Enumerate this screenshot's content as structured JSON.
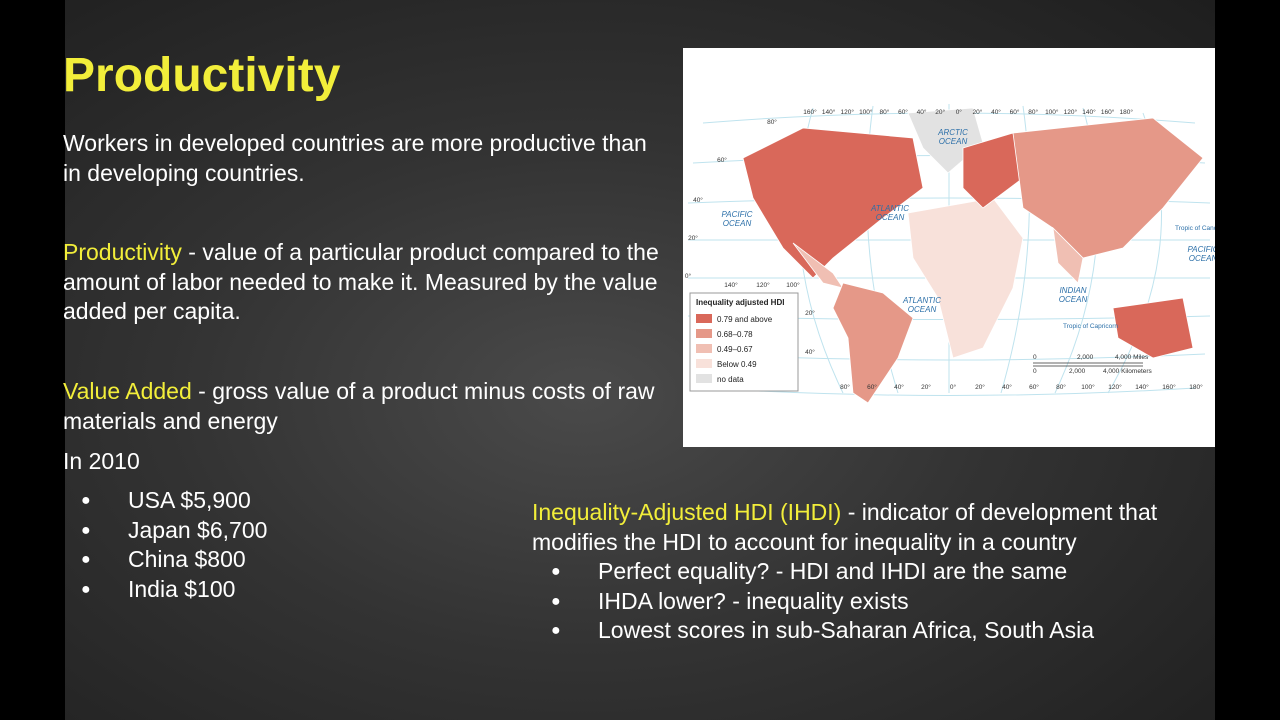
{
  "slide": {
    "title": "Productivity",
    "intro": "Workers in developed countries are more productive than in developing countries.",
    "definitions": [
      {
        "term": "Productivity",
        "text": " - value of a particular product compared to the amount of labor needed to make it.  Measured by the value added per capita."
      },
      {
        "term": "Value Added",
        "text": " - gross value of a product minus costs of raw materials and energy"
      }
    ],
    "year_heading": "In 2010",
    "bullets": [
      "USA $5,900",
      "Japan $6,700",
      "China $800",
      "India $100"
    ],
    "ihdi": {
      "term": "Inequality-Adjusted HDI (IHDI)",
      "text": " - indicator of development that modifies the HDI to account for inequality in a country",
      "bullets": [
        "Perfect equality? - HDI and IHDI are the same",
        "IHDA lower? - inequality exists",
        "Lowest scores in sub-Saharan Africa, South Asia"
      ]
    }
  },
  "map": {
    "legend": {
      "title": "Inequality adjusted HDI",
      "items": [
        {
          "label": "0.79 and above",
          "color": "#d9685a"
        },
        {
          "label": "0.68–0.78",
          "color": "#e59888"
        },
        {
          "label": "0.49–0.67",
          "color": "#f0bfb3"
        },
        {
          "label": "Below 0.49",
          "color": "#f8e1da"
        },
        {
          "label": "no data",
          "color": "#e2e2e2"
        }
      ]
    },
    "top_longitudes": [
      "160°",
      "140°",
      "120°",
      "100°",
      "80°",
      "60°",
      "40°",
      "20°",
      "0°",
      "20°",
      "40°",
      "60°",
      "80°",
      "100°",
      "120°",
      "140°",
      "160°",
      "180°"
    ],
    "bottom_longitudes": [
      "80°",
      "60°",
      "40°",
      "20°",
      "0°",
      "20°",
      "40°",
      "60°",
      "80°",
      "100°",
      "120°",
      "140°",
      "160°",
      "180°"
    ],
    "latitudes": [
      "80°",
      "60°",
      "40°",
      "20°",
      "0°",
      "140°",
      "120°",
      "100°",
      "20°",
      "40°"
    ],
    "oceans": [
      [
        "ARCTIC",
        "OCEAN"
      ],
      [
        "ATLANTIC",
        "OCEAN"
      ],
      [
        "PACIFIC",
        "OCEAN"
      ],
      [
        "ATLANTIC",
        "OCEAN"
      ],
      [
        "INDIAN",
        "OCEAN"
      ],
      [
        "PACIFIC",
        "OCEAN"
      ]
    ],
    "tropics": [
      "Tropic of Capricorn",
      "Tropic of Cancer"
    ],
    "scale": [
      "0",
      "2,000",
      "4,000 Miles",
      "0",
      "2,000",
      "4,000 Kilometers"
    ]
  }
}
